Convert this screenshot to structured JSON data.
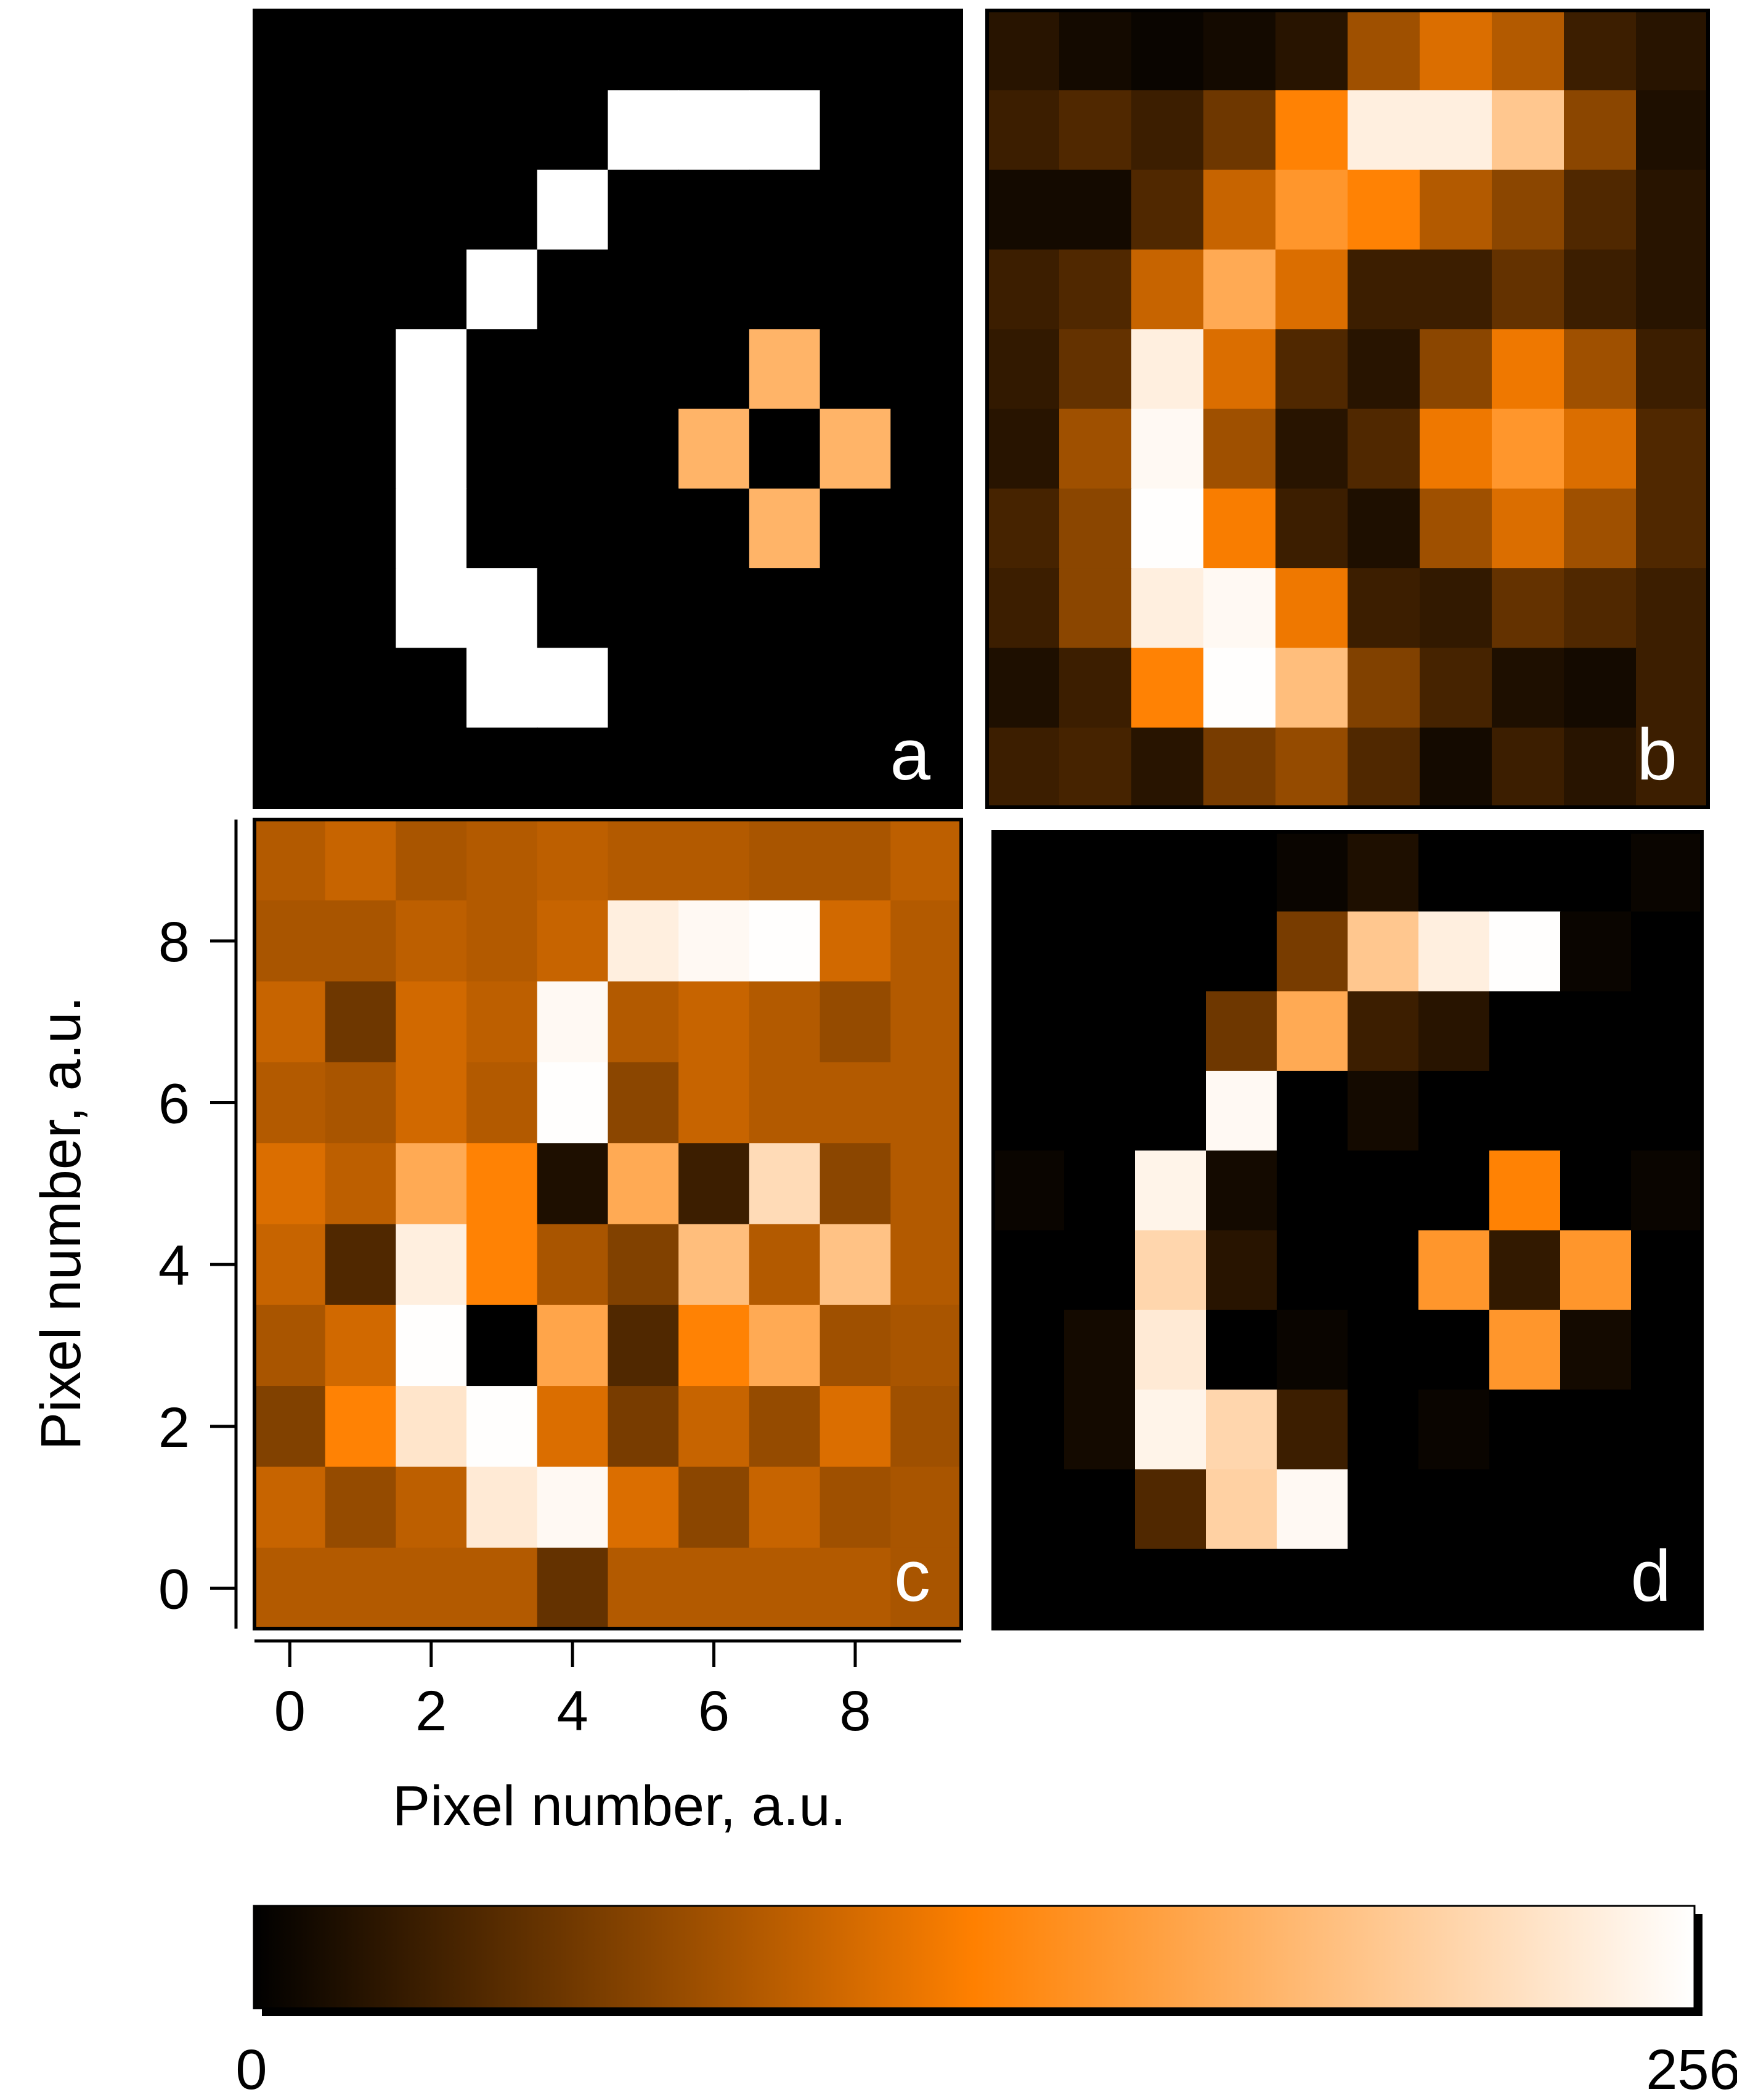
{
  "chart_data": {
    "type": "heatmap",
    "colormap": {
      "name": "black-orange-white",
      "stops": [
        "#000000",
        "#ff8000",
        "#ffffff"
      ],
      "min_label": "0",
      "max_label": "256",
      "vmin": 0,
      "vmax": 256
    },
    "axes": {
      "xlabel": "Pixel number, a.u.",
      "ylabel": "Pixel number, a.u.",
      "xticks": [
        "0",
        "2",
        "4",
        "6",
        "8"
      ],
      "yticks": [
        "0",
        "2",
        "4",
        "6",
        "8"
      ],
      "xlim": [
        -0.5,
        9.5
      ],
      "ylim": [
        -0.5,
        9.5
      ]
    },
    "panels": [
      {
        "label": "a",
        "values": [
          [
            0,
            0,
            0,
            0,
            0,
            0,
            0,
            0,
            0,
            0
          ],
          [
            0,
            0,
            0,
            0,
            0,
            256,
            256,
            256,
            0,
            0
          ],
          [
            0,
            0,
            0,
            0,
            256,
            0,
            0,
            0,
            0,
            0
          ],
          [
            0,
            0,
            0,
            256,
            0,
            0,
            0,
            0,
            0,
            0
          ],
          [
            0,
            0,
            256,
            0,
            0,
            0,
            0,
            180,
            0,
            0
          ],
          [
            0,
            0,
            256,
            0,
            0,
            0,
            180,
            0,
            180,
            0
          ],
          [
            0,
            0,
            256,
            0,
            0,
            0,
            0,
            180,
            0,
            0
          ],
          [
            0,
            0,
            256,
            256,
            0,
            0,
            0,
            0,
            0,
            0
          ],
          [
            0,
            0,
            0,
            256,
            256,
            0,
            0,
            0,
            0,
            0
          ],
          [
            0,
            0,
            0,
            0,
            0,
            0,
            0,
            0,
            0,
            0
          ]
        ]
      },
      {
        "label": "b",
        "values": [
          [
            20,
            10,
            5,
            10,
            20,
            80,
            110,
            90,
            30,
            20
          ],
          [
            30,
            40,
            30,
            55,
            130,
            240,
            240,
            200,
            70,
            15
          ],
          [
            10,
            10,
            40,
            100,
            150,
            130,
            90,
            70,
            40,
            20
          ],
          [
            30,
            40,
            100,
            170,
            110,
            30,
            30,
            50,
            30,
            20
          ],
          [
            25,
            50,
            240,
            110,
            40,
            20,
            70,
            120,
            80,
            30
          ],
          [
            20,
            80,
            250,
            80,
            20,
            40,
            120,
            150,
            110,
            40
          ],
          [
            35,
            70,
            255,
            125,
            30,
            15,
            80,
            110,
            80,
            40
          ],
          [
            30,
            70,
            240,
            250,
            120,
            30,
            25,
            50,
            40,
            30
          ],
          [
            15,
            30,
            130,
            255,
            190,
            65,
            35,
            15,
            10,
            30
          ],
          [
            30,
            35,
            20,
            60,
            75,
            40,
            10,
            30,
            20,
            30
          ]
        ]
      },
      {
        "label": "c",
        "values": [
          [
            90,
            100,
            85,
            90,
            95,
            90,
            90,
            85,
            85,
            95
          ],
          [
            85,
            85,
            95,
            90,
            100,
            240,
            250,
            255,
            105,
            90
          ],
          [
            100,
            55,
            105,
            95,
            250,
            90,
            100,
            90,
            75,
            90
          ],
          [
            90,
            85,
            105,
            90,
            255,
            70,
            100,
            90,
            90,
            90
          ],
          [
            110,
            95,
            170,
            130,
            15,
            170,
            30,
            220,
            70,
            90
          ],
          [
            100,
            40,
            240,
            130,
            85,
            65,
            190,
            90,
            195,
            90
          ],
          [
            85,
            105,
            255,
            0,
            165,
            40,
            130,
            170,
            80,
            85
          ],
          [
            65,
            130,
            230,
            255,
            110,
            60,
            100,
            75,
            110,
            80
          ],
          [
            100,
            75,
            95,
            235,
            250,
            110,
            70,
            100,
            80,
            85
          ],
          [
            90,
            90,
            90,
            90,
            50,
            90,
            90,
            90,
            90,
            85
          ]
        ]
      },
      {
        "label": "d",
        "values": [
          [
            0,
            0,
            0,
            0,
            5,
            15,
            0,
            0,
            0,
            5
          ],
          [
            0,
            0,
            0,
            0,
            60,
            200,
            240,
            255,
            5,
            0
          ],
          [
            0,
            0,
            0,
            55,
            170,
            30,
            20,
            0,
            0,
            0
          ],
          [
            0,
            0,
            0,
            250,
            0,
            10,
            0,
            0,
            0,
            0
          ],
          [
            5,
            0,
            245,
            10,
            0,
            0,
            0,
            130,
            0,
            5
          ],
          [
            0,
            0,
            215,
            20,
            0,
            0,
            150,
            25,
            150,
            0
          ],
          [
            0,
            10,
            235,
            0,
            5,
            0,
            0,
            150,
            10,
            0
          ],
          [
            0,
            10,
            245,
            215,
            30,
            0,
            5,
            0,
            0,
            0
          ],
          [
            0,
            0,
            40,
            210,
            250,
            0,
            0,
            0,
            0,
            0
          ],
          [
            0,
            0,
            0,
            0,
            0,
            0,
            0,
            0,
            0,
            0
          ]
        ]
      }
    ]
  }
}
